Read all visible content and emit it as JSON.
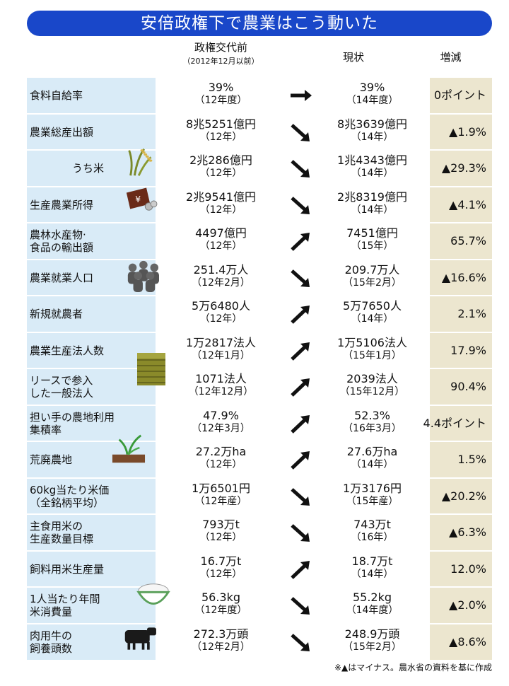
{
  "title": "安倍政権下で農業はこう動いた",
  "headers": {
    "before": "政権交代前",
    "before_sub": "（2012年12月以前）",
    "now": "現状",
    "change": "増減"
  },
  "chart_data": {
    "type": "table",
    "columns": [
      "政権交代前",
      "現状",
      "増減"
    ],
    "rows": [
      {
        "label": [
          "食料自給率"
        ],
        "before": "39%",
        "before_year": "（12年度）",
        "trend": "flat",
        "now": "39%",
        "now_year": "（14年度）",
        "change": "0ポイント"
      },
      {
        "label": [
          "農業総産出額"
        ],
        "before": "8兆5251億円",
        "before_year": "（12年）",
        "trend": "down",
        "now": "8兆3639億円",
        "now_year": "（14年）",
        "change": "▲1.9%"
      },
      {
        "label": [
          "うち米"
        ],
        "indent": true,
        "before": "2兆286億円",
        "before_year": "（12年）",
        "trend": "down",
        "now": "1兆4343億円",
        "now_year": "（14年）",
        "change": "▲29.3%"
      },
      {
        "label": [
          "生産農業所得"
        ],
        "before": "2兆9541億円",
        "before_year": "（12年）",
        "trend": "down",
        "now": "2兆8319億円",
        "now_year": "（14年）",
        "change": "▲4.1%"
      },
      {
        "label": [
          "農林水産物·",
          "食品の輸出額"
        ],
        "before": "4497億円",
        "before_year": "（12年）",
        "trend": "up",
        "now": "7451億円",
        "now_year": "（15年）",
        "change": "65.7%"
      },
      {
        "label": [
          "農業就業人口"
        ],
        "before": "251.4万人",
        "before_year": "（12年2月）",
        "trend": "down",
        "now": "209.7万人",
        "now_year": "（15年2月）",
        "change": "▲16.6%"
      },
      {
        "label": [
          "新規就農者"
        ],
        "before": "5万6480人",
        "before_year": "（12年）",
        "trend": "up",
        "now": "5万7650人",
        "now_year": "（14年）",
        "change": "2.1%"
      },
      {
        "label": [
          "農業生産法人数"
        ],
        "before": "1万2817法人",
        "before_year": "（12年1月）",
        "trend": "up",
        "now": "1万5106法人",
        "now_year": "（15年1月）",
        "change": "17.9%"
      },
      {
        "label": [
          "リースで参入",
          "した一般法人"
        ],
        "before": "1071法人",
        "before_year": "（12年12月）",
        "trend": "up",
        "now": "2039法人",
        "now_year": "（15年12月）",
        "change": "90.4%"
      },
      {
        "label": [
          "担い手の農地利用",
          "集積率"
        ],
        "before": "47.9%",
        "before_year": "（12年3月）",
        "trend": "up",
        "now": "52.3%",
        "now_year": "（16年3月）",
        "change": "4.4ポイント"
      },
      {
        "label": [
          "荒廃農地"
        ],
        "before": "27.2万ha",
        "before_year": "（12年）",
        "trend": "up",
        "now": "27.6万ha",
        "now_year": "（14年）",
        "change": "1.5%"
      },
      {
        "label": [
          "60kg当たり米価",
          "（全銘柄平均）"
        ],
        "before": "1万6501円",
        "before_year": "（12年産）",
        "trend": "down",
        "now": "1万3176円",
        "now_year": "（15年産）",
        "change": "▲20.2%"
      },
      {
        "label": [
          "主食用米の",
          "生産数量目標"
        ],
        "before": "793万t",
        "before_year": "（12年）",
        "trend": "down",
        "now": "743万t",
        "now_year": "（16年）",
        "change": "▲6.3%"
      },
      {
        "label": [
          "飼料用米生産量"
        ],
        "before": "16.7万t",
        "before_year": "（12年）",
        "trend": "up",
        "now": "18.7万t",
        "now_year": "（14年）",
        "change": "12.0%"
      },
      {
        "label": [
          "1人当たり年間",
          "米消費量"
        ],
        "before": "56.3kg",
        "before_year": "（12年度）",
        "trend": "down",
        "now": "55.2kg",
        "now_year": "（14年度）",
        "change": "▲2.0%"
      },
      {
        "label": [
          "肉用牛の",
          "飼養頭数"
        ],
        "before": "272.3万頭",
        "before_year": "（12年2月）",
        "trend": "down",
        "now": "248.9万頭",
        "now_year": "（15年2月）",
        "change": "▲8.6%"
      }
    ]
  },
  "illustrations": [
    {
      "row": 2,
      "icon": "rice-plant-icon"
    },
    {
      "row": 3,
      "icon": "yen-money-icon"
    },
    {
      "row": 5,
      "icon": "people-icon"
    },
    {
      "row": 7,
      "icon": "hay-bale-icon"
    },
    {
      "row": 10,
      "icon": "seedling-icon"
    },
    {
      "row": 14,
      "icon": "rice-bowl-icon"
    },
    {
      "row": 15,
      "icon": "cow-icon"
    }
  ],
  "colors": {
    "title_bg": "#1947c9",
    "label_bg": "#d9ebf7",
    "change_bg": "#ece6cf"
  },
  "footnote": "※▲はマイナス。農水省の資料を基に作成"
}
